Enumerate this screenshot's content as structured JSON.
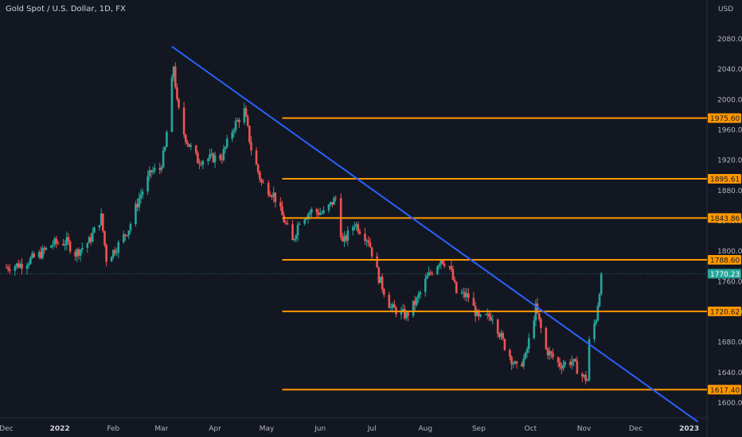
{
  "header": {
    "title": "Gold Spot / U.S. Dollar, 1D, FX",
    "currency": "USD"
  },
  "colors": {
    "background": "#131722",
    "up": "#26a69a",
    "down": "#ef5350",
    "trendline": "#2962ff",
    "level": "#ff9800",
    "price_tag": "#26a69a"
  },
  "chart_data": {
    "type": "candlestick",
    "title": "Gold Spot / U.S. Dollar, 1D, FX",
    "yaxis_unit": "USD",
    "ylim": [
      1580,
      2100
    ],
    "y_ticks": [
      "1600.00",
      "1640.00",
      "1680.00",
      "1720.00",
      "1760.00",
      "1800.00",
      "1840.00",
      "1880.00",
      "1920.00",
      "1960.00",
      "2000.00",
      "2040.00",
      "2080.00"
    ],
    "x_ticks": [
      "Dec",
      "2022",
      "Feb",
      "Mar",
      "Apr",
      "May",
      "Jun",
      "Jul",
      "Aug",
      "Sep",
      "Oct",
      "Nov",
      "Dec",
      "2023"
    ],
    "x_tick_dates": [
      "2021-12-01",
      "2022-01-01",
      "2022-02-01",
      "2022-03-01",
      "2022-04-01",
      "2022-05-01",
      "2022-06-01",
      "2022-07-01",
      "2022-08-01",
      "2022-09-01",
      "2022-10-01",
      "2022-11-01",
      "2022-12-01",
      "2023-01-01"
    ],
    "xlim": [
      "2021-12-01",
      "2023-01-15"
    ],
    "levels": [
      {
        "label": "1975.60",
        "value": 1975.6,
        "start": "2022-05-10"
      },
      {
        "label": "1895.61",
        "value": 1895.61,
        "start": "2022-05-10"
      },
      {
        "label": "1843.86",
        "value": 1843.86,
        "start": "2022-05-10"
      },
      {
        "label": "1788.60",
        "value": 1788.6,
        "start": "2022-05-10"
      },
      {
        "label": "1720.62",
        "value": 1720.62,
        "start": "2022-05-10"
      },
      {
        "label": "1617.40",
        "value": 1617.4,
        "start": "2022-05-10"
      }
    ],
    "trendline": {
      "start": {
        "date": "2022-03-07",
        "price": 2070
      },
      "end": {
        "date": "2023-01-06",
        "price": 1575
      }
    },
    "current_price": {
      "label": "1770.23",
      "value": 1770.23
    },
    "anchors": [
      [
        "2021-12-01",
        1779
      ],
      [
        "2021-12-10",
        1783
      ],
      [
        "2021-12-20",
        1795
      ],
      [
        "2021-12-28",
        1810
      ],
      [
        "2022-01-05",
        1812
      ],
      [
        "2022-01-10",
        1797
      ],
      [
        "2022-01-18",
        1813
      ],
      [
        "2022-01-25",
        1845
      ],
      [
        "2022-01-28",
        1790
      ],
      [
        "2022-02-03",
        1805
      ],
      [
        "2022-02-10",
        1830
      ],
      [
        "2022-02-16",
        1870
      ],
      [
        "2022-02-23",
        1905
      ],
      [
        "2022-02-28",
        1908
      ],
      [
        "2022-03-03",
        1935
      ],
      [
        "2022-03-08",
        2045
      ],
      [
        "2022-03-10",
        1995
      ],
      [
        "2022-03-14",
        1955
      ],
      [
        "2022-03-17",
        1940
      ],
      [
        "2022-03-22",
        1920
      ],
      [
        "2022-03-28",
        1922
      ],
      [
        "2022-04-05",
        1925
      ],
      [
        "2022-04-12",
        1965
      ],
      [
        "2022-04-18",
        1985
      ],
      [
        "2022-04-22",
        1935
      ],
      [
        "2022-04-28",
        1890
      ],
      [
        "2022-05-05",
        1875
      ],
      [
        "2022-05-12",
        1835
      ],
      [
        "2022-05-16",
        1812
      ],
      [
        "2022-05-20",
        1842
      ],
      [
        "2022-05-27",
        1853
      ],
      [
        "2022-06-03",
        1850
      ],
      [
        "2022-06-10",
        1870
      ],
      [
        "2022-06-14",
        1810
      ],
      [
        "2022-06-21",
        1837
      ],
      [
        "2022-06-29",
        1815
      ],
      [
        "2022-07-05",
        1765
      ],
      [
        "2022-07-12",
        1725
      ],
      [
        "2022-07-21",
        1715
      ],
      [
        "2022-07-27",
        1735
      ],
      [
        "2022-08-02",
        1765
      ],
      [
        "2022-08-10",
        1790
      ],
      [
        "2022-08-15",
        1780
      ],
      [
        "2022-08-19",
        1745
      ],
      [
        "2022-08-26",
        1740
      ],
      [
        "2022-09-01",
        1710
      ],
      [
        "2022-09-09",
        1715
      ],
      [
        "2022-09-16",
        1675
      ],
      [
        "2022-09-23",
        1645
      ],
      [
        "2022-09-28",
        1660
      ],
      [
        "2022-10-04",
        1725
      ],
      [
        "2022-10-10",
        1670
      ],
      [
        "2022-10-18",
        1650
      ],
      [
        "2022-10-25",
        1655
      ],
      [
        "2022-10-31",
        1635
      ],
      [
        "2022-11-03",
        1630
      ],
      [
        "2022-11-04",
        1680
      ],
      [
        "2022-11-08",
        1712
      ],
      [
        "2022-11-10",
        1750
      ],
      [
        "2022-11-11",
        1770
      ]
    ]
  }
}
